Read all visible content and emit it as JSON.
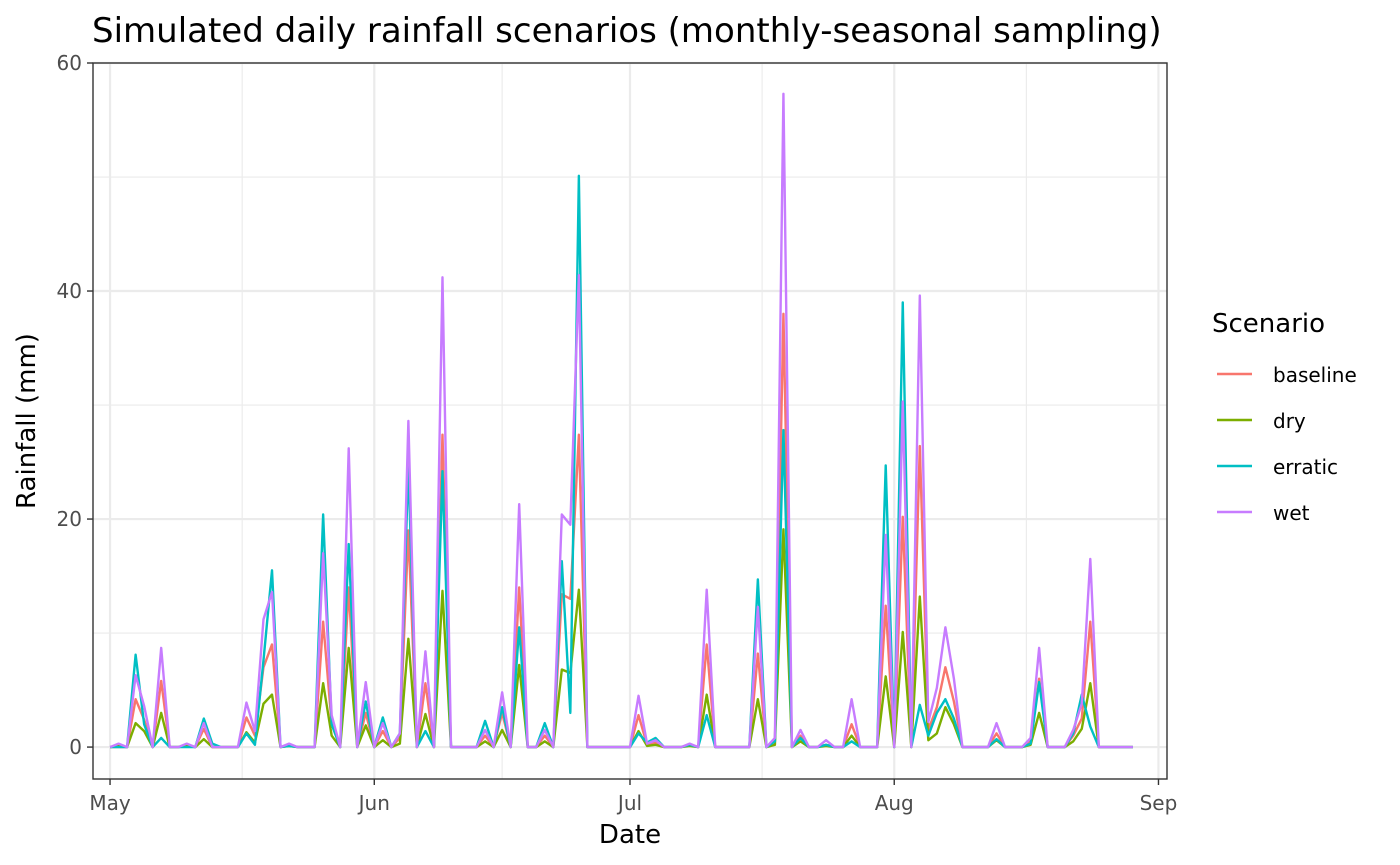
{
  "chart_data": {
    "type": "line",
    "title": "Simulated daily rainfall scenarios (monthly-seasonal sampling)",
    "xlabel": "Date",
    "ylabel": "Rainfall (mm)",
    "x_type": "date",
    "x_start": "2023-05-01",
    "x_end": "2023-08-31",
    "xlim": [
      "2023-04-29",
      "2023-09-02"
    ],
    "x_ticks": [
      {
        "date": "2023-05-01",
        "label": "May"
      },
      {
        "date": "2023-06-01",
        "label": "Jun"
      },
      {
        "date": "2023-07-01",
        "label": "Jul"
      },
      {
        "date": "2023-08-01",
        "label": "Aug"
      },
      {
        "date": "2023-09-01",
        "label": "Sep"
      }
    ],
    "ylim": [
      -2.8,
      60
    ],
    "y_ticks": [
      0,
      20,
      40,
      60
    ],
    "grid": true,
    "legend": {
      "title": "Scenario",
      "position": "right"
    },
    "series": [
      {
        "name": "baseline",
        "color": "#F8766D",
        "values": [
          0,
          0,
          0,
          4.2,
          2.4,
          0,
          5.8,
          0,
          0,
          0.2,
          0,
          1.6,
          0,
          0,
          0,
          0,
          2.6,
          1,
          7,
          9,
          0,
          0.2,
          0,
          0,
          0,
          11,
          2,
          0,
          14,
          0,
          3,
          0,
          1.4,
          0,
          0.8,
          19,
          0,
          5.6,
          0,
          27.4,
          0,
          0,
          0,
          0,
          1,
          0,
          3,
          0,
          14,
          0,
          0,
          1,
          0,
          13.4,
          13,
          27.4,
          0,
          0,
          0,
          0,
          0,
          0,
          2.8,
          0.2,
          0.4,
          0,
          0,
          0,
          0.2,
          0,
          9,
          0,
          0,
          0,
          0,
          0,
          8.2,
          0,
          0.5,
          38,
          0,
          1,
          0,
          0,
          0.2,
          0,
          0,
          2,
          0,
          0,
          0,
          12.4,
          0,
          20.2,
          0,
          26.4,
          1.5,
          3.5,
          7,
          4,
          0,
          0,
          0,
          0,
          1.2,
          0,
          0,
          0,
          0.5,
          6,
          0,
          0,
          0,
          1,
          2.5,
          11,
          0,
          0,
          0,
          0,
          0
        ]
      },
      {
        "name": "dry",
        "color": "#7CAE00",
        "values": [
          0,
          0.1,
          0,
          2.1,
          1.4,
          0,
          3,
          0,
          0,
          0.1,
          0,
          0.7,
          0,
          0,
          0,
          0,
          1.3,
          0.4,
          3.8,
          4.6,
          0,
          0.1,
          0,
          0,
          0,
          5.6,
          1,
          0,
          8.7,
          0,
          1.9,
          0,
          0.6,
          0,
          0.3,
          9.5,
          0,
          2.9,
          0,
          13.7,
          0,
          0,
          0,
          0,
          0.5,
          0,
          1.5,
          0,
          7.2,
          0,
          0,
          0.5,
          0,
          6.8,
          6.5,
          13.8,
          0,
          0,
          0,
          0,
          0,
          0,
          1.4,
          0.1,
          0.2,
          0,
          0,
          0,
          0.1,
          0,
          4.6,
          0,
          0,
          0,
          0,
          0,
          4.2,
          0,
          0.2,
          19.1,
          0,
          0.5,
          0,
          0,
          0.1,
          0,
          0,
          1,
          0,
          0,
          0,
          6.2,
          0,
          10.1,
          0,
          13.2,
          0.6,
          1.2,
          3.5,
          2,
          0,
          0,
          0,
          0,
          0.6,
          0,
          0,
          0,
          0.2,
          3,
          0,
          0,
          0,
          0.5,
          1.6,
          5.6,
          0,
          0,
          0,
          0,
          0
        ]
      },
      {
        "name": "erratic",
        "color": "#00BFC4",
        "values": [
          0,
          0,
          0,
          8.1,
          2,
          0,
          0.8,
          0,
          0,
          0,
          0,
          2.5,
          0.3,
          0,
          0,
          0,
          1.2,
          0.2,
          7.6,
          15.5,
          0,
          0.1,
          0,
          0,
          0,
          20.4,
          2,
          0,
          17.8,
          0,
          4,
          0,
          2.6,
          0,
          1.2,
          24.8,
          0,
          1.4,
          0,
          24.2,
          0,
          0,
          0,
          0,
          2.3,
          0,
          3.5,
          0,
          10.5,
          0,
          0,
          2.1,
          0,
          16.3,
          3,
          50.1,
          0,
          0,
          0,
          0,
          0,
          0,
          1.2,
          0.4,
          0.8,
          0,
          0,
          0,
          0.2,
          0,
          2.8,
          0,
          0,
          0,
          0,
          0,
          14.7,
          0,
          0.5,
          27.8,
          0,
          0.8,
          0,
          0,
          0.2,
          0,
          0,
          0.5,
          0,
          0,
          0,
          24.7,
          0,
          39,
          0,
          3.7,
          1,
          3,
          4.2,
          2.5,
          0,
          0,
          0,
          0,
          0.7,
          0,
          0,
          0,
          0.3,
          5.7,
          0,
          0,
          0,
          1.2,
          4.6,
          1.8,
          0,
          0,
          0,
          0,
          0
        ]
      },
      {
        "name": "wet",
        "color": "#C77CFF",
        "values": [
          0,
          0.3,
          0,
          6.3,
          3.6,
          0,
          8.7,
          0,
          0,
          0.3,
          0,
          2.1,
          0,
          0,
          0,
          0,
          3.9,
          1.4,
          11.2,
          13.6,
          0,
          0.3,
          0,
          0,
          0,
          17,
          2.8,
          0,
          26.2,
          0,
          5.7,
          0,
          2.1,
          0,
          1.2,
          28.6,
          0,
          8.4,
          0,
          41.2,
          0,
          0,
          0,
          0,
          1.5,
          0,
          4.8,
          0,
          21.3,
          0,
          0,
          1.5,
          0,
          20.4,
          19.5,
          41.4,
          0,
          0,
          0,
          0,
          0,
          0,
          4.5,
          0.3,
          0.6,
          0,
          0,
          0,
          0.3,
          0,
          13.8,
          0,
          0,
          0,
          0,
          0,
          12.3,
          0,
          0.8,
          57.3,
          0,
          1.5,
          0,
          0,
          0.6,
          0,
          0,
          4.2,
          0,
          0,
          0,
          18.6,
          0,
          30.3,
          0,
          39.6,
          2.2,
          5.2,
          10.5,
          6,
          0,
          0,
          0,
          0,
          2.1,
          0,
          0,
          0,
          0.8,
          8.7,
          0,
          0,
          0,
          1.5,
          3.8,
          16.5,
          0,
          0,
          0,
          0,
          0
        ]
      }
    ]
  }
}
